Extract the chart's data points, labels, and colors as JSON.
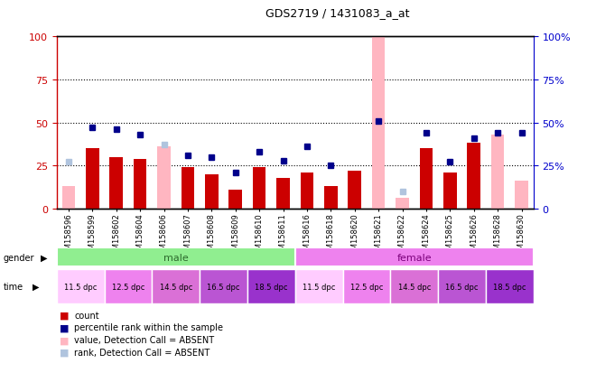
{
  "title": "GDS2719 / 1431083_a_at",
  "samples": [
    "GSM158596",
    "GSM158599",
    "GSM158602",
    "GSM158604",
    "GSM158606",
    "GSM158607",
    "GSM158608",
    "GSM158609",
    "GSM158610",
    "GSM158611",
    "GSM158616",
    "GSM158618",
    "GSM158620",
    "GSM158621",
    "GSM158622",
    "GSM158624",
    "GSM158625",
    "GSM158626",
    "GSM158628",
    "GSM158630"
  ],
  "count_values": [
    0,
    35,
    30,
    29,
    0,
    24,
    20,
    11,
    24,
    18,
    21,
    13,
    22,
    0,
    0,
    35,
    21,
    38,
    0,
    0
  ],
  "count_absent": [
    13,
    0,
    0,
    0,
    36,
    0,
    0,
    0,
    0,
    0,
    0,
    0,
    22,
    100,
    6,
    0,
    0,
    0,
    43,
    16
  ],
  "rank_values": [
    0,
    47,
    46,
    43,
    0,
    31,
    30,
    21,
    33,
    28,
    36,
    25,
    0,
    51,
    0,
    44,
    27,
    41,
    44,
    44
  ],
  "rank_absent": [
    27,
    0,
    0,
    0,
    37,
    0,
    0,
    0,
    0,
    0,
    0,
    0,
    0,
    0,
    10,
    0,
    0,
    0,
    0,
    0
  ],
  "gender_male_color": "#90ee90",
  "gender_female_color": "#ee82ee",
  "time_colors": [
    "#ffccff",
    "#ee82ee",
    "#da70d6",
    "#ba55d3",
    "#9932cc"
  ],
  "time_labels": [
    "11.5 dpc",
    "12.5 dpc",
    "14.5 dpc",
    "16.5 dpc",
    "18.5 dpc"
  ],
  "bar_color_red": "#cc0000",
  "bar_color_pink": "#ffb6c1",
  "dot_color_blue": "#00008b",
  "dot_color_lightblue": "#b0c4de",
  "ylim": [
    0,
    100
  ],
  "yticks": [
    0,
    25,
    50,
    75,
    100
  ],
  "grid_lines": [
    25,
    50,
    75
  ],
  "left_axis_color": "#cc0000",
  "right_axis_color": "#0000cc",
  "background_color": "#ffffff",
  "plot_bg_color": "#ffffff"
}
